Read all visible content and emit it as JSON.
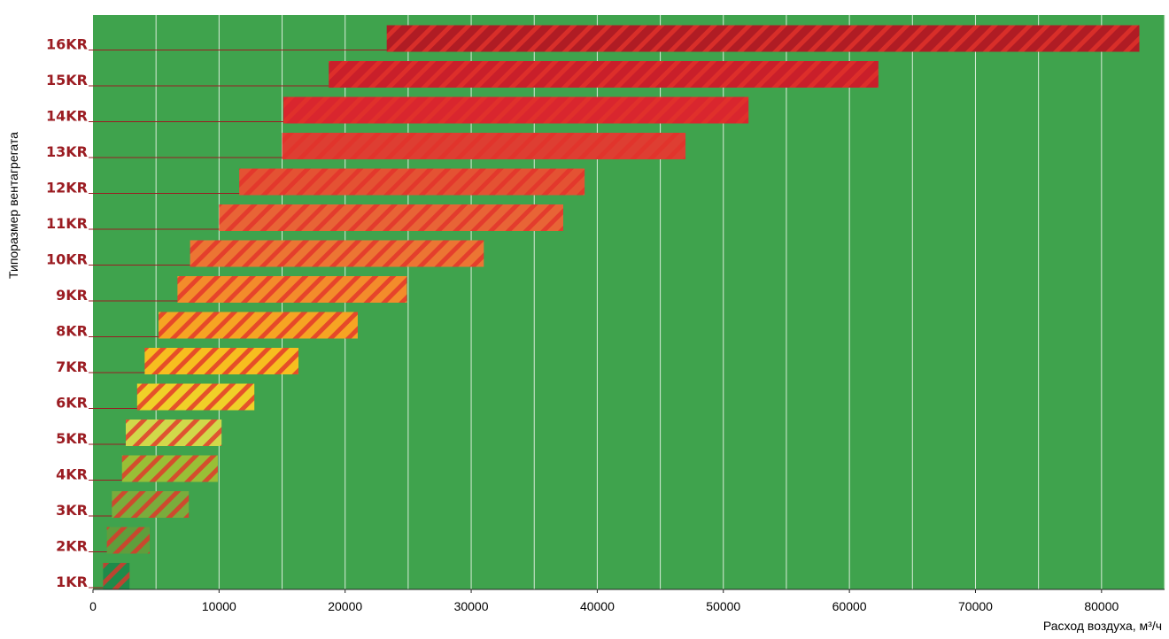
{
  "chart_data": {
    "type": "bar",
    "orientation": "horizontal",
    "xlabel": "Расход воздуха, м³/ч",
    "ylabel": "Типоразмер вентагрегата",
    "xlim": [
      0,
      85000
    ],
    "x_ticks": [
      0,
      10000,
      20000,
      30000,
      40000,
      50000,
      60000,
      70000,
      80000
    ],
    "x_tick_labels": [
      "0",
      "10000",
      "20000",
      "30000",
      "40000",
      "50000",
      "60000",
      "70000",
      "80000"
    ],
    "grid": true,
    "background_color": "#3fa34d",
    "label_color": "#9b1c22",
    "categories": [
      "1KR",
      "2KR",
      "3KR",
      "4KR",
      "5KR",
      "6KR",
      "7KR",
      "8KR",
      "9KR",
      "10KR",
      "11KR",
      "12KR",
      "13KR",
      "14KR",
      "15KR",
      "16KR"
    ],
    "ranges": [
      [
        800,
        2900
      ],
      [
        1100,
        4500
      ],
      [
        1500,
        7600
      ],
      [
        2300,
        9900
      ],
      [
        2600,
        10200
      ],
      [
        3500,
        12800
      ],
      [
        4100,
        16300
      ],
      [
        5200,
        21000
      ],
      [
        6700,
        24900
      ],
      [
        7700,
        31000
      ],
      [
        10000,
        37300
      ],
      [
        11600,
        39000
      ],
      [
        15000,
        47000
      ],
      [
        15100,
        52000
      ],
      [
        18700,
        62300
      ],
      [
        23300,
        83000
      ]
    ],
    "bar_colors": [
      "#1f8a4a",
      "#5f9e3c",
      "#7aac3c",
      "#99bf36",
      "#d1d84a",
      "#f0d028",
      "#f7be1f",
      "#f6a423",
      "#f38c2b",
      "#ec7533",
      "#e86436",
      "#e45233",
      "#de3e32",
      "#d9262e",
      "#c91f2a",
      "#b01c24"
    ],
    "stripe_color": "#e2322a"
  }
}
